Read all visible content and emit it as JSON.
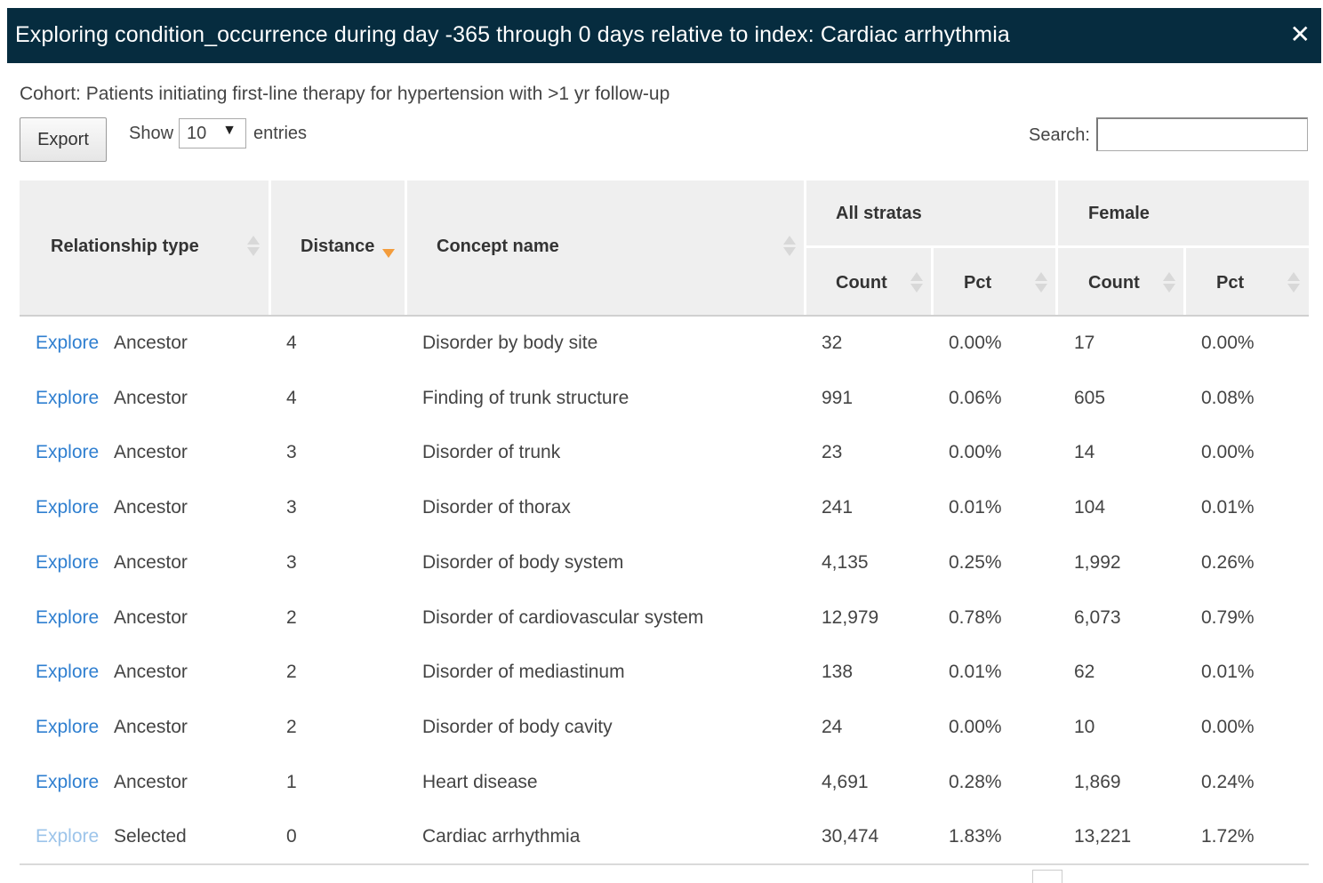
{
  "dialog": {
    "title": "Exploring condition_occurrence during day -365 through 0 days relative to index: Cardiac arrhythmia",
    "close_icon": "close-icon"
  },
  "cohort_text": "Cohort: Patients initiating first-line therapy for hypertension with >1 yr follow-up",
  "toolbar": {
    "export_label": "Export",
    "show_label": "Show",
    "entries_value": "10",
    "entries_label": "entries",
    "search_label": "Search:",
    "search_value": ""
  },
  "table": {
    "headers": {
      "relationship_type": "Relationship type",
      "distance": "Distance",
      "concept_name": "Concept name",
      "group_all": "All stratas",
      "group_female": "Female",
      "count": "Count",
      "pct": "Pct"
    },
    "sorted_column": "Distance",
    "sort_direction": "descending",
    "rows": [
      {
        "action": "Explore",
        "rel": "Ancestor",
        "distance": "4",
        "concept": "Disorder by body site",
        "all_count": "32",
        "all_pct": "0.00%",
        "f_count": "17",
        "f_pct": "0.00%"
      },
      {
        "action": "Explore",
        "rel": "Ancestor",
        "distance": "4",
        "concept": "Finding of trunk structure",
        "all_count": "991",
        "all_pct": "0.06%",
        "f_count": "605",
        "f_pct": "0.08%"
      },
      {
        "action": "Explore",
        "rel": "Ancestor",
        "distance": "3",
        "concept": "Disorder of trunk",
        "all_count": "23",
        "all_pct": "0.00%",
        "f_count": "14",
        "f_pct": "0.00%"
      },
      {
        "action": "Explore",
        "rel": "Ancestor",
        "distance": "3",
        "concept": "Disorder of thorax",
        "all_count": "241",
        "all_pct": "0.01%",
        "f_count": "104",
        "f_pct": "0.01%"
      },
      {
        "action": "Explore",
        "rel": "Ancestor",
        "distance": "3",
        "concept": "Disorder of body system",
        "all_count": "4,135",
        "all_pct": "0.25%",
        "f_count": "1,992",
        "f_pct": "0.26%"
      },
      {
        "action": "Explore",
        "rel": "Ancestor",
        "distance": "2",
        "concept": "Disorder of cardiovascular system",
        "all_count": "12,979",
        "all_pct": "0.78%",
        "f_count": "6,073",
        "f_pct": "0.79%"
      },
      {
        "action": "Explore",
        "rel": "Ancestor",
        "distance": "2",
        "concept": "Disorder of mediastinum",
        "all_count": "138",
        "all_pct": "0.01%",
        "f_count": "62",
        "f_pct": "0.01%"
      },
      {
        "action": "Explore",
        "rel": "Ancestor",
        "distance": "2",
        "concept": "Disorder of body cavity",
        "all_count": "24",
        "all_pct": "0.00%",
        "f_count": "10",
        "f_pct": "0.00%"
      },
      {
        "action": "Explore",
        "rel": "Ancestor",
        "distance": "1",
        "concept": "Heart disease",
        "all_count": "4,691",
        "all_pct": "0.28%",
        "f_count": "1,869",
        "f_pct": "0.24%"
      },
      {
        "action": "Explore",
        "rel": "Selected",
        "distance": "0",
        "concept": "Cardiac arrhythmia",
        "all_count": "30,474",
        "all_pct": "1.83%",
        "f_count": "13,221",
        "f_pct": "1.72%",
        "action_disabled": true
      }
    ]
  },
  "colors": {
    "title_bar": "#062c3f",
    "link": "#2f7fd0",
    "link_disabled": "#9cc4ea",
    "header_bg": "#efefef",
    "sort_active": "#f39c3c"
  }
}
